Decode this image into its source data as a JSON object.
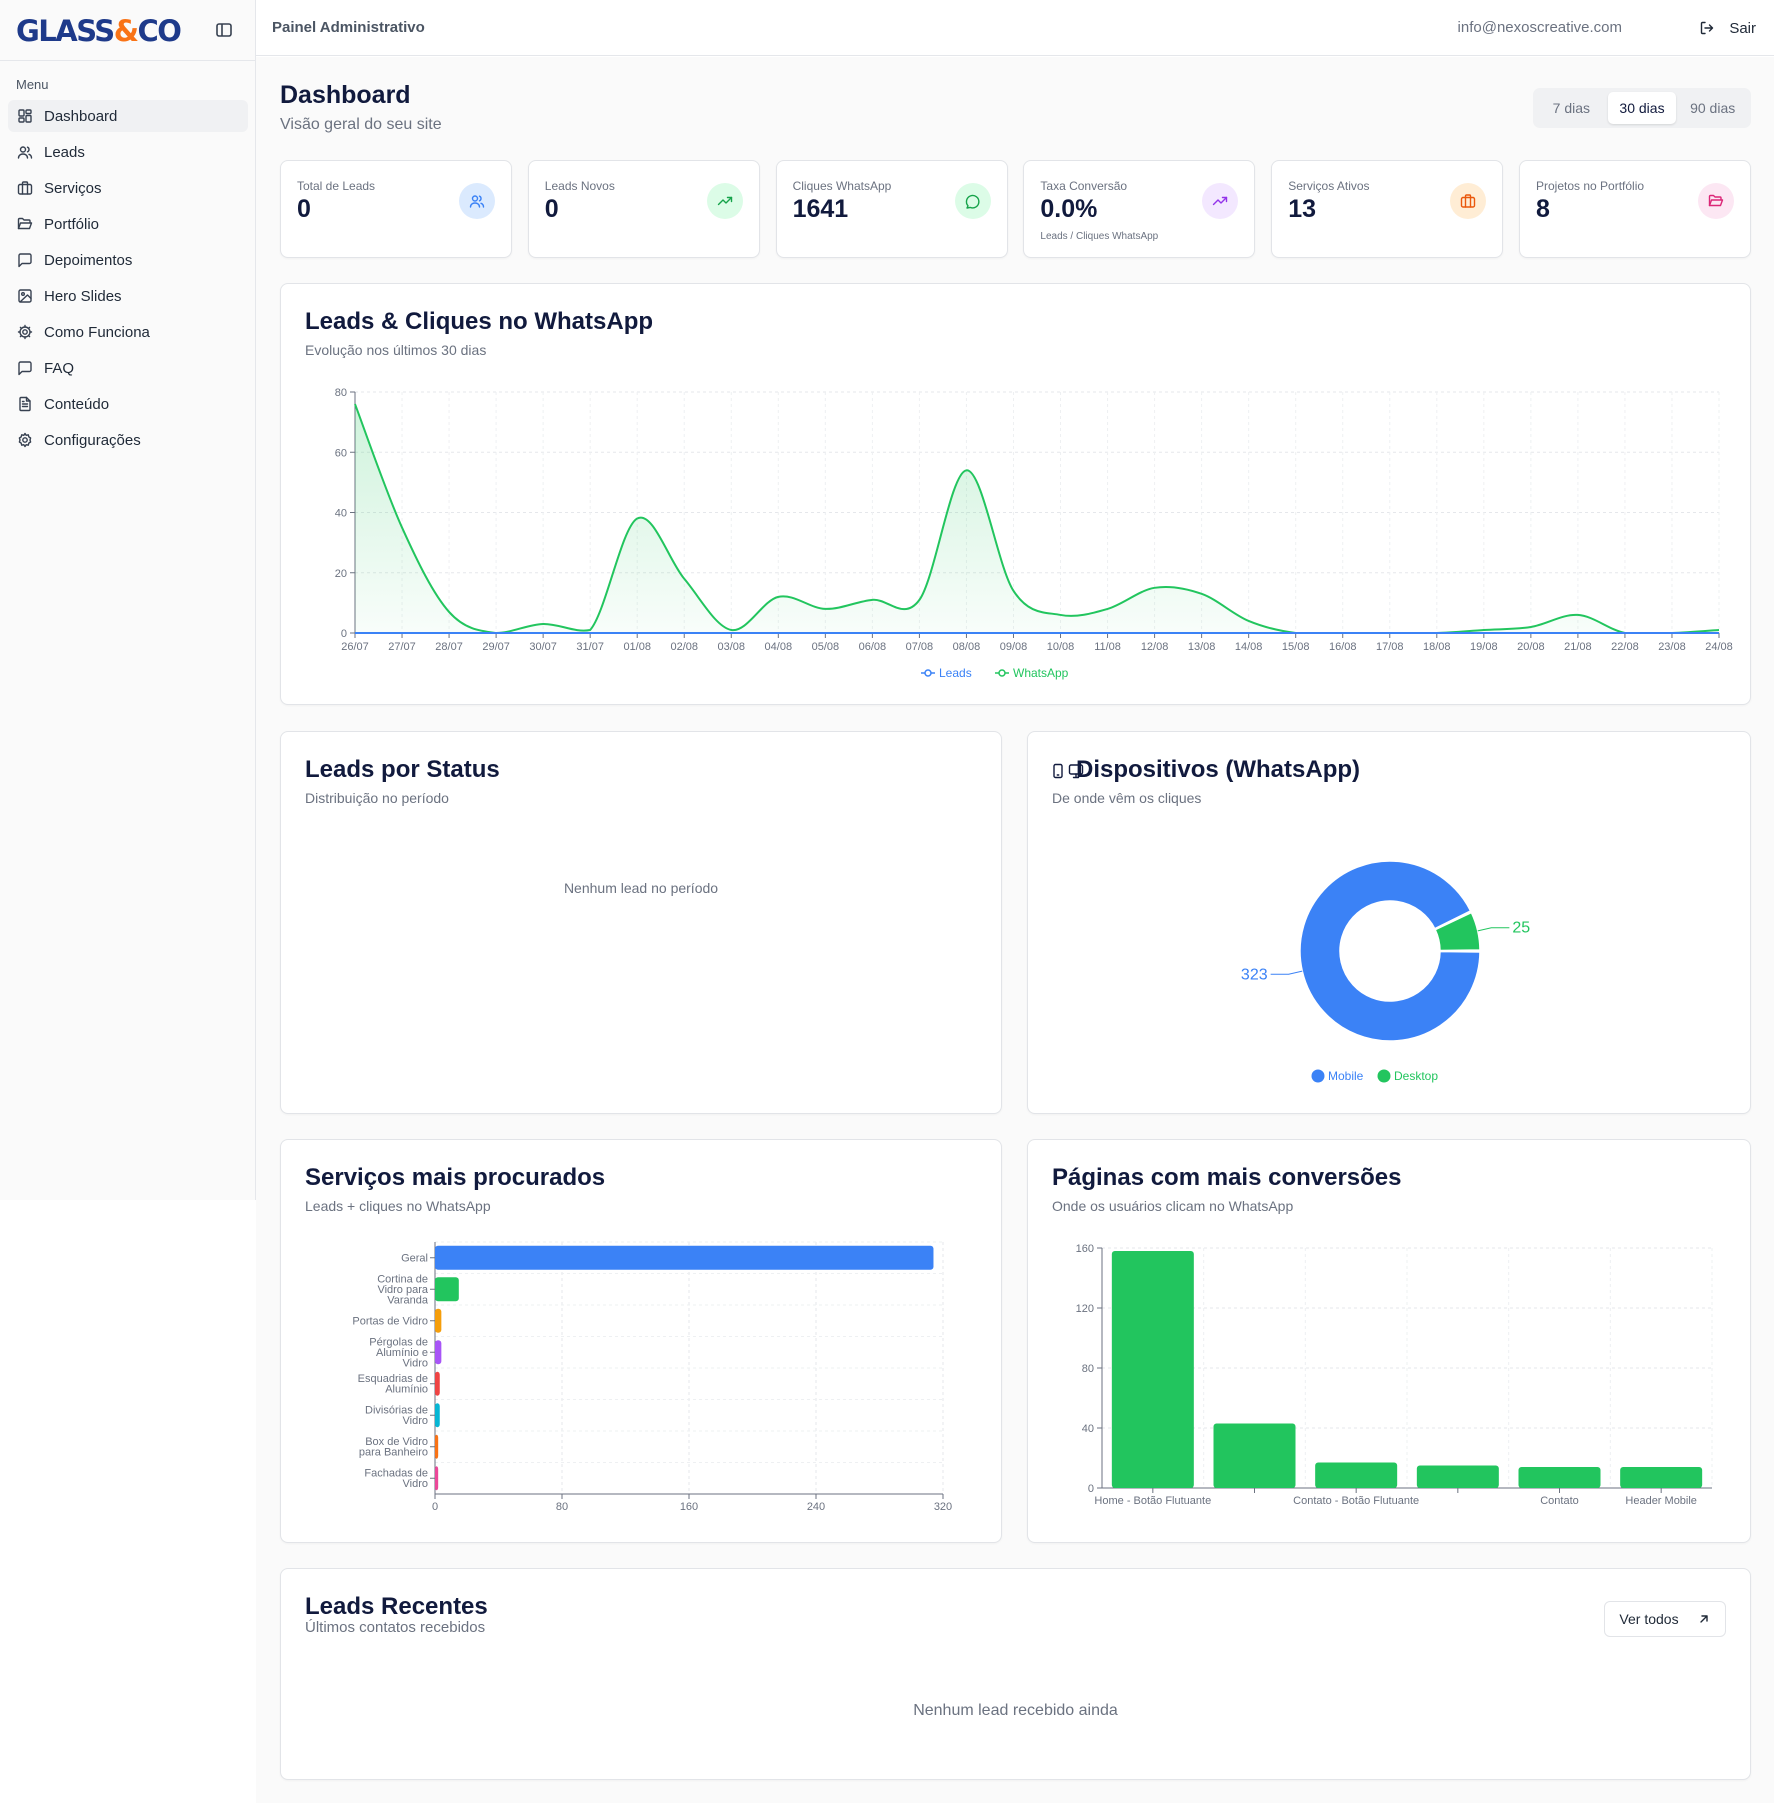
{
  "sidebar": {
    "brand_part1": "GLASS",
    "brand_amp": "&",
    "brand_part2": "CO",
    "menu_title": "Menu",
    "items": [
      {
        "label": "Dashboard",
        "icon": "layout-dashboard-icon",
        "active": true
      },
      {
        "label": "Leads",
        "icon": "users-icon"
      },
      {
        "label": "Serviços",
        "icon": "briefcase-icon"
      },
      {
        "label": "Portfólio",
        "icon": "folder-open-icon"
      },
      {
        "label": "Depoimentos",
        "icon": "message-square-icon"
      },
      {
        "label": "Hero Slides",
        "icon": "image-icon"
      },
      {
        "label": "Como Funciona",
        "icon": "cog-icon"
      },
      {
        "label": "FAQ",
        "icon": "message-square-icon"
      },
      {
        "label": "Conteúdo",
        "icon": "file-text-icon"
      },
      {
        "label": "Configurações",
        "icon": "settings-icon"
      }
    ]
  },
  "header": {
    "title": "Painel Administrativo",
    "email": "info@nexoscreative.com",
    "logout_label": "Sair"
  },
  "page": {
    "title": "Dashboard",
    "subtitle": "Visão geral do seu site",
    "ranges": [
      "7 dias",
      "30 dias",
      "90 dias"
    ],
    "selected_range": "30 dias"
  },
  "stats": [
    {
      "label": "Total de Leads",
      "value": "0",
      "icon": "users-icon",
      "color": "#3b82f6",
      "bg": "#dbeafe"
    },
    {
      "label": "Leads Novos",
      "value": "0",
      "icon": "trending-up-icon",
      "color": "#16a34a",
      "bg": "#dcfce7"
    },
    {
      "label": "Cliques WhatsApp",
      "value": "1641",
      "icon": "message-circle-icon",
      "color": "#16a34a",
      "bg": "#dcfce7"
    },
    {
      "label": "Taxa Conversão",
      "value": "0.0%",
      "note": "Leads / Cliques WhatsApp",
      "icon": "trending-up-icon",
      "color": "#9333ea",
      "bg": "#f3e8ff"
    },
    {
      "label": "Serviços Ativos",
      "value": "13",
      "icon": "briefcase-icon",
      "color": "#ea580c",
      "bg": "#ffedd5"
    },
    {
      "label": "Projetos no Portfólio",
      "value": "8",
      "icon": "folder-open-icon",
      "color": "#db2777",
      "bg": "#fce7f3"
    }
  ],
  "leads_chart": {
    "title": "Leads & Cliques no WhatsApp",
    "subtitle": "Evolução nos últimos 30 dias"
  },
  "status_card": {
    "title": "Leads por Status",
    "subtitle": "Distribuição no período",
    "empty": "Nenhum lead no período"
  },
  "devices_card": {
    "title": "Dispositivos (WhatsApp)",
    "subtitle": "De onde vêm os cliques"
  },
  "services_card": {
    "title": "Serviços mais procurados",
    "subtitle": "Leads + cliques no WhatsApp"
  },
  "pages_card": {
    "title": "Páginas com mais conversões",
    "subtitle": "Onde os usuários clicam no WhatsApp"
  },
  "recent_card": {
    "title": "Leads Recentes",
    "subtitle": "Últimos contatos recebidos",
    "button": "Ver todos",
    "empty": "Nenhum lead recebido ainda"
  },
  "chart_data": [
    {
      "type": "area",
      "title": "Leads & Cliques no WhatsApp",
      "categories": [
        "26/07",
        "27/07",
        "28/07",
        "29/07",
        "30/07",
        "31/07",
        "01/08",
        "02/08",
        "03/08",
        "04/08",
        "05/08",
        "06/08",
        "07/08",
        "08/08",
        "09/08",
        "10/08",
        "11/08",
        "12/08",
        "13/08",
        "14/08",
        "15/08",
        "16/08",
        "17/08",
        "18/08",
        "19/08",
        "20/08",
        "21/08",
        "22/08",
        "23/08",
        "24/08"
      ],
      "series": [
        {
          "name": "Leads",
          "color": "#3b82f6",
          "values": [
            0,
            0,
            0,
            0,
            0,
            0,
            0,
            0,
            0,
            0,
            0,
            0,
            0,
            0,
            0,
            0,
            0,
            0,
            0,
            0,
            0,
            0,
            0,
            0,
            0,
            0,
            0,
            0,
            0,
            0
          ]
        },
        {
          "name": "WhatsApp",
          "color": "#22c55e",
          "values": [
            76,
            35,
            7,
            0,
            3,
            1,
            38,
            18,
            1,
            12,
            8,
            11,
            11,
            54,
            14,
            6,
            8,
            15,
            13,
            4,
            0,
            0,
            0,
            0,
            1,
            2,
            6,
            0,
            0,
            1
          ]
        }
      ],
      "ylim": [
        0,
        80
      ],
      "yticks": [
        0,
        20,
        40,
        60,
        80
      ],
      "legend": "bottom"
    },
    {
      "type": "pie",
      "title": "Dispositivos (WhatsApp)",
      "slices": [
        {
          "label": "Mobile",
          "value": 323,
          "color": "#3b82f6"
        },
        {
          "label": "Desktop",
          "value": 25,
          "color": "#22c55e"
        }
      ],
      "legend": "bottom"
    },
    {
      "type": "bar",
      "orientation": "horizontal",
      "title": "Serviços mais procurados",
      "categories": [
        "Geral",
        "Cortina de Vidro para Varanda",
        "Portas de Vidro",
        "Pérgolas de Alumínio e Vidro",
        "Esquadrias de Alumínio",
        "Divisórias de Vidro",
        "Box de Vidro para Banheiro",
        "Fachadas de Vidro"
      ],
      "category_lines": [
        [
          "Geral"
        ],
        [
          "Cortina de",
          "Vidro para",
          "Varanda"
        ],
        [
          "Portas de Vidro"
        ],
        [
          "Pérgolas de",
          "Alumínio e",
          "Vidro"
        ],
        [
          "Esquadrias de",
          "Alumínio"
        ],
        [
          "Divisórias de",
          "Vidro"
        ],
        [
          "Box de Vidro",
          "para Banheiro"
        ],
        [
          "Fachadas de",
          "Vidro"
        ]
      ],
      "values": [
        314,
        15,
        4,
        4,
        3,
        3,
        2,
        2
      ],
      "colors": [
        "#3b82f6",
        "#22c55e",
        "#f59e0b",
        "#a855f7",
        "#ef4444",
        "#06b6d4",
        "#f97316",
        "#ec4899"
      ],
      "xlim": [
        0,
        320
      ],
      "xticks": [
        0,
        80,
        160,
        240,
        320
      ]
    },
    {
      "type": "bar",
      "title": "Páginas com mais conversões",
      "categories": [
        "Home - Botão Flutuante",
        "",
        "Contato - Botão Flutuante",
        "",
        "Contato",
        "Header Mobile"
      ],
      "values": [
        158,
        43,
        17,
        15,
        14,
        14
      ],
      "color": "#22c55e",
      "ylim": [
        0,
        160
      ],
      "yticks": [
        0,
        40,
        80,
        120,
        160
      ]
    }
  ]
}
